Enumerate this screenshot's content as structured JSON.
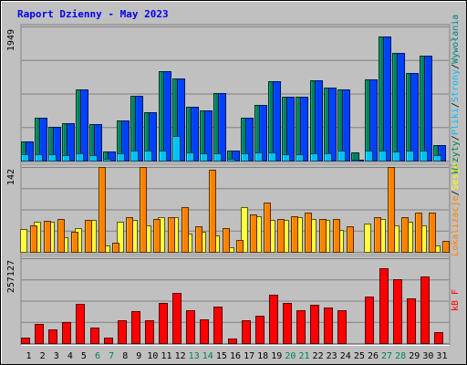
{
  "chart_data": {
    "type": "bar",
    "title": "Raport Dzienny -  May 2023",
    "days": [
      "1",
      "2",
      "3",
      "4",
      "5",
      "6",
      "7",
      "8",
      "9",
      "10",
      "11",
      "12",
      "13",
      "14",
      "15",
      "16",
      "17",
      "18",
      "19",
      "20",
      "21",
      "22",
      "23",
      "24",
      "25",
      "26",
      "27",
      "28",
      "29",
      "30",
      "31"
    ],
    "weekend_days": [
      6,
      7,
      13,
      14,
      20,
      21,
      27,
      28
    ],
    "panels": [
      {
        "id": "top",
        "ymax": 1949,
        "ymax_label": "1949",
        "right_labels": [
          {
            "text": "Wizyty",
            "color": "#008040"
          },
          {
            "text": "/",
            "color": "#000000"
          },
          {
            "text": "Pliki",
            "color": "#00c0ff"
          },
          {
            "text": "/",
            "color": "#000000"
          },
          {
            "text": "Strony",
            "color": "#00c0ff"
          },
          {
            "text": "/",
            "color": "#000000"
          },
          {
            "text": "Wywołania",
            "color": "#008080"
          }
        ],
        "series": [
          {
            "name": "Wizyty",
            "color": "#00805c",
            "values": [
              275,
              620,
              495,
              540,
              1030,
              530,
              135,
              590,
              945,
              705,
              1300,
              1190,
              780,
              730,
              975,
              145,
              620,
              810,
              1150,
              925,
              925,
              1170,
              1060,
              1030,
              125,
              1180,
              1800,
              1560,
              1270,
              1530,
              225
            ]
          },
          {
            "name": "Wywołania",
            "color": "#0040ff",
            "values": [
              275,
              620,
              495,
              540,
              1030,
              530,
              135,
              590,
              945,
              705,
              1300,
              1190,
              780,
              730,
              975,
              145,
              620,
              810,
              1150,
              925,
              925,
              1170,
              1060,
              1030,
              10,
              1180,
              1800,
              1560,
              1270,
              1530,
              225
            ]
          },
          {
            "name": "Pliki",
            "color": "#00c0ff",
            "values": [
              90,
              90,
              95,
              80,
              105,
              75,
              30,
              105,
              150,
              150,
              140,
              355,
              120,
              105,
              110,
              30,
              105,
              120,
              115,
              90,
              90,
              110,
              110,
              140,
              10,
              140,
              150,
              135,
              145,
              150,
              80
            ]
          },
          {
            "name": "Strony",
            "color": "#00c0ff",
            "values": [
              0,
              0,
              0,
              0,
              0,
              0,
              0,
              0,
              0,
              0,
              0,
              0,
              0,
              0,
              0,
              0,
              0,
              0,
              0,
              0,
              0,
              0,
              0,
              0,
              0,
              0,
              0,
              0,
              0,
              0,
              0
            ]
          }
        ]
      },
      {
        "id": "mid",
        "ymax": 142,
        "ymax_label": "142",
        "right_labels": [
          {
            "text": "Lokalizacje",
            "color": "#ff8000"
          },
          {
            "text": "/",
            "color": "#000000"
          },
          {
            "text": "Sesje",
            "color": "#ffff00"
          }
        ],
        "series": [
          {
            "name": "Sesje",
            "color": "#ffff40",
            "values": [
              38,
              50,
              50,
              25,
              39,
              53,
              10,
              50,
              53,
              45,
              58,
              58,
              30,
              33,
              28,
              8,
              75,
              60,
              53,
              53,
              58,
              55,
              53,
              36,
              0,
              48,
              55,
              45,
              50,
              45,
              10
            ]
          },
          {
            "name": "Lokalizacje",
            "color": "#ff8000",
            "values": [
              45,
              52,
              55,
              33,
              53,
              142,
              15,
              58,
              142,
              55,
              58,
              75,
              43,
              138,
              40,
              20,
              63,
              82,
              55,
              60,
              65,
              55,
              55,
              43,
              0,
              58,
              142,
              58,
              65,
              65,
              18
            ]
          }
        ]
      },
      {
        "id": "bot",
        "ymax": 257127,
        "ymax_label": "257127",
        "right_labels": [
          {
            "text": "kB F",
            "color": "#ff0000"
          }
        ],
        "series": [
          {
            "name": "kB F",
            "color": "#ff0000",
            "values": [
              17000,
              59000,
              42000,
              63000,
              120000,
              48000,
              16000,
              68000,
              96000,
              68000,
              122000,
              152000,
              99000,
              72000,
              111000,
              15000,
              70000,
              84000,
              147000,
              121000,
              99000,
              115000,
              107000,
              99000,
              0,
              141000,
              226000,
              194000,
              135000,
              201000,
              32000
            ]
          }
        ]
      }
    ]
  }
}
